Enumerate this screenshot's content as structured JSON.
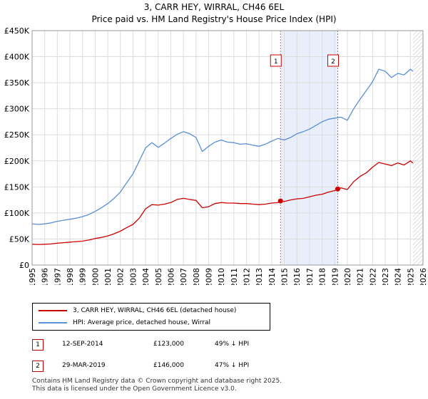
{
  "title": {
    "line1": "3, CARR HEY, WIRRAL, CH46 6EL",
    "line2": "Price paid vs. HM Land Registry's House Price Index (HPI)"
  },
  "chart_data": {
    "type": "line",
    "ylim": [
      0,
      450000
    ],
    "xlim": [
      1995,
      2026
    ],
    "y_ticks": [
      0,
      50000,
      100000,
      150000,
      200000,
      250000,
      300000,
      350000,
      400000,
      450000
    ],
    "y_tick_labels": [
      "£0",
      "£50K",
      "£100K",
      "£150K",
      "£200K",
      "£250K",
      "£300K",
      "£350K",
      "£400K",
      "£450K"
    ],
    "x_ticks": [
      1995,
      1996,
      1997,
      1998,
      1999,
      2000,
      2001,
      2002,
      2003,
      2004,
      2005,
      2006,
      2007,
      2008,
      2009,
      2010,
      2011,
      2012,
      2013,
      2014,
      2015,
      2016,
      2017,
      2018,
      2019,
      2020,
      2021,
      2022,
      2023,
      2024,
      2025,
      2026
    ],
    "x_tick_labels": [
      "1995",
      "1996",
      "1997",
      "1998",
      "1999",
      "2000",
      "2001",
      "2002",
      "2003",
      "2004",
      "2005",
      "2006",
      "2007",
      "2008",
      "2009",
      "2010",
      "2011",
      "2012",
      "2013",
      "2014",
      "2015",
      "2016",
      "2017",
      "2018",
      "2019",
      "2020",
      "2021",
      "2022",
      "2023",
      "2024",
      "2025",
      "2026"
    ],
    "shaded_range": [
      2014.7,
      2019.24
    ],
    "hatched_from": 2025.2,
    "series": [
      {
        "name": "3, CARR HEY, WIRRAL, CH46 6EL (detached house)",
        "color": "#cc0000",
        "x": [
          1995.0,
          1995.5,
          1996.0,
          1996.5,
          1997.0,
          1997.5,
          1998.0,
          1998.5,
          1999.0,
          1999.5,
          2000.0,
          2000.5,
          2001.0,
          2001.5,
          2002.0,
          2002.5,
          2003.0,
          2003.5,
          2004.0,
          2004.5,
          2005.0,
          2005.5,
          2006.0,
          2006.5,
          2007.0,
          2007.5,
          2008.0,
          2008.5,
          2009.0,
          2009.5,
          2010.0,
          2010.5,
          2011.0,
          2011.5,
          2012.0,
          2012.5,
          2013.0,
          2013.5,
          2014.0,
          2014.5,
          2014.7,
          2015.0,
          2015.5,
          2016.0,
          2016.5,
          2017.0,
          2017.5,
          2018.0,
          2018.5,
          2019.0,
          2019.24,
          2019.5,
          2020.0,
          2020.5,
          2021.0,
          2021.5,
          2022.0,
          2022.5,
          2023.0,
          2023.5,
          2024.0,
          2024.5,
          2025.0,
          2025.2
        ],
        "values": [
          40000,
          39500,
          40000,
          40500,
          42000,
          43000,
          44000,
          45000,
          46000,
          48000,
          51000,
          53000,
          56000,
          60000,
          65000,
          72000,
          78000,
          90000,
          108000,
          116000,
          115000,
          117000,
          120000,
          126000,
          128000,
          126000,
          124000,
          110000,
          112000,
          118000,
          120000,
          119000,
          119000,
          118000,
          118000,
          117000,
          116000,
          117000,
          119000,
          120000,
          123000,
          122000,
          125000,
          127000,
          128000,
          131000,
          134000,
          136000,
          140000,
          143000,
          146000,
          148000,
          145000,
          160000,
          170000,
          177000,
          188000,
          197000,
          194000,
          191000,
          196000,
          192000,
          200000,
          196000
        ]
      },
      {
        "name": "HPI: Average price, detached house, Wirral",
        "color": "#5b8fd6",
        "x": [
          1995.0,
          1995.5,
          1996.0,
          1996.5,
          1997.0,
          1997.5,
          1998.0,
          1998.5,
          1999.0,
          1999.5,
          2000.0,
          2000.5,
          2001.0,
          2001.5,
          2002.0,
          2002.5,
          2003.0,
          2003.5,
          2004.0,
          2004.5,
          2005.0,
          2005.5,
          2006.0,
          2006.5,
          2007.0,
          2007.5,
          2008.0,
          2008.5,
          2009.0,
          2009.5,
          2010.0,
          2010.5,
          2011.0,
          2011.5,
          2012.0,
          2012.5,
          2013.0,
          2013.5,
          2014.0,
          2014.5,
          2015.0,
          2015.5,
          2016.0,
          2016.5,
          2017.0,
          2017.5,
          2018.0,
          2018.5,
          2019.0,
          2019.5,
          2020.0,
          2020.5,
          2021.0,
          2021.5,
          2022.0,
          2022.5,
          2023.0,
          2023.5,
          2024.0,
          2024.5,
          2025.0,
          2025.2
        ],
        "values": [
          79000,
          78000,
          79000,
          81000,
          84000,
          86000,
          88000,
          90000,
          93000,
          97000,
          103000,
          110000,
          118000,
          128000,
          140000,
          158000,
          175000,
          200000,
          225000,
          235000,
          226000,
          234000,
          243000,
          251000,
          256000,
          252000,
          245000,
          218000,
          228000,
          236000,
          240000,
          236000,
          235000,
          232000,
          233000,
          230000,
          228000,
          232000,
          238000,
          243000,
          240000,
          245000,
          252000,
          256000,
          261000,
          268000,
          275000,
          280000,
          282000,
          284000,
          278000,
          300000,
          318000,
          335000,
          352000,
          376000,
          372000,
          360000,
          368000,
          365000,
          376000,
          372000
        ]
      }
    ],
    "annotations": [
      {
        "label": "1",
        "x": 2014.7,
        "value": 123000
      },
      {
        "label": "2",
        "x": 2019.24,
        "value": 146000
      }
    ]
  },
  "legend": {
    "property": "3, CARR HEY, WIRRAL, CH46 6EL (detached house)",
    "hpi": "HPI: Average price, detached house, Wirral"
  },
  "sales": [
    {
      "num": "1",
      "date": "12-SEP-2014",
      "price": "£123,000",
      "hpi": "49% ↓ HPI"
    },
    {
      "num": "2",
      "date": "29-MAR-2019",
      "price": "£146,000",
      "hpi": "47% ↓ HPI"
    }
  ],
  "footer": {
    "line1": "Contains HM Land Registry data © Crown copyright and database right 2025.",
    "line2": "This data is licensed under the Open Government Licence v3.0."
  }
}
